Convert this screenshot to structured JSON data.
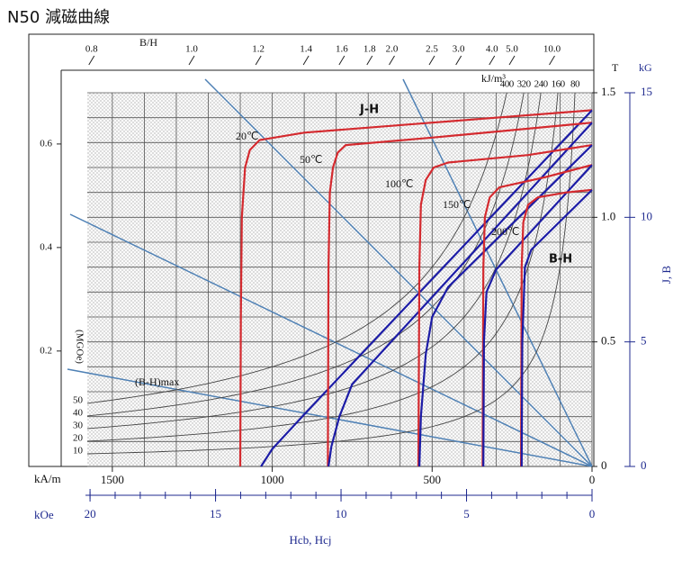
{
  "chart_data": {
    "type": "line",
    "title": "N50 減磁曲線",
    "top_axis_label": "B/H",
    "top_ticks": [
      0.8,
      {
        "value": 1,
        "label": "1.0"
      },
      1.2,
      1.4,
      1.6,
      1.8,
      {
        "value": 2,
        "label": "2.0"
      },
      2.5,
      {
        "value": 3,
        "label": "3.0"
      },
      {
        "value": 4,
        "label": "4.0"
      },
      {
        "value": 5,
        "label": "5.0"
      },
      {
        "value": 10,
        "label": "10.0"
      }
    ],
    "x_unit": "kA/m",
    "xlim": [
      1660,
      0
    ],
    "xticks": [
      1500,
      1000,
      500,
      0
    ],
    "xgrid_step": 100,
    "x2_unit": "kOe",
    "x2lim": [
      21.15,
      0
    ],
    "x2ticks": [
      20,
      15,
      10,
      5,
      0
    ],
    "x2_minor_step": 1,
    "x_label": "Hcb,  Hcj",
    "y_unit": "T",
    "ylim": [
      0,
      1.5
    ],
    "yticks": [
      0,
      0.5,
      {
        "value": 1,
        "label": "1.0"
      },
      1.5
    ],
    "ygrid_step": 0.1,
    "y2_unit": "kG",
    "y2lim": [
      0,
      15
    ],
    "y2ticks": [
      0,
      5,
      10,
      15
    ],
    "y_label": "J,  B",
    "y3lim": [
      -0.023,
      0.699
    ],
    "y3ticks": [
      0.2,
      0.4,
      0.6
    ],
    "grid": true,
    "energy": {
      "unit": "kJ/m³",
      "values": [
        400,
        320,
        240,
        160,
        80
      ],
      "mgoe_label": "(MGOe)",
      "mgoe_labels": [
        50,
        40,
        30,
        20,
        10
      ],
      "name": "(B-H)max",
      "color": "#444444"
    },
    "jh_label": "J-H",
    "jh_color": "#d42a2f",
    "bh_label": "B-H",
    "bh_color": "#1c1ca6",
    "curves": [
      {
        "temperature": "20℃",
        "jh": {
          "x": [
            1100,
            1098,
            1095,
            1085,
            1070,
            1040,
            900,
            500,
            0
          ],
          "y": [
            0,
            0.6,
            1.0,
            1.2,
            1.27,
            1.31,
            1.34,
            1.38,
            1.43
          ]
        },
        "bh": {
          "x": [
            0,
            500,
            900,
            1000,
            1035
          ],
          "y": [
            1.43,
            0.752,
            0.209,
            0.07,
            0
          ]
        }
      },
      {
        "temperature": "50℃",
        "jh": {
          "x": [
            826,
            824,
            820,
            810,
            795,
            770,
            500,
            0
          ],
          "y": [
            0,
            0.8,
            1.1,
            1.2,
            1.26,
            1.29,
            1.32,
            1.38
          ]
        },
        "bh": {
          "x": [
            0,
            500,
            750,
            790,
            815,
            824
          ],
          "y": [
            1.38,
            0.68,
            0.33,
            0.2,
            0.08,
            0
          ]
        }
      },
      {
        "temperature": "100℃",
        "jh": {
          "x": [
            543,
            540,
            535,
            520,
            495,
            450,
            200,
            0
          ],
          "y": [
            0,
            0.8,
            1.05,
            1.15,
            1.2,
            1.22,
            1.25,
            1.29
          ]
        },
        "bh": {
          "x": [
            0,
            450,
            500,
            520,
            535,
            540
          ],
          "y": [
            1.29,
            0.72,
            0.6,
            0.45,
            0.2,
            0
          ]
        }
      },
      {
        "temperature": "150℃",
        "jh": {
          "x": [
            342,
            340,
            335,
            320,
            290,
            150,
            0
          ],
          "y": [
            0,
            0.8,
            1.0,
            1.08,
            1.12,
            1.16,
            1.21
          ]
        },
        "bh": {
          "x": [
            0,
            300,
            330,
            338,
            340
          ],
          "y": [
            1.21,
            0.79,
            0.7,
            0.5,
            0
          ]
        }
      },
      {
        "temperature": "200℃",
        "jh": {
          "x": [
            222,
            220,
            215,
            200,
            170,
            80,
            0
          ],
          "y": [
            0,
            0.8,
            0.98,
            1.05,
            1.08,
            1.1,
            1.11
          ]
        },
        "bh": {
          "x": [
            0,
            190,
            210,
            218,
            220
          ],
          "y": [
            1.11,
            0.87,
            0.8,
            0.5,
            0
          ]
        }
      }
    ]
  }
}
